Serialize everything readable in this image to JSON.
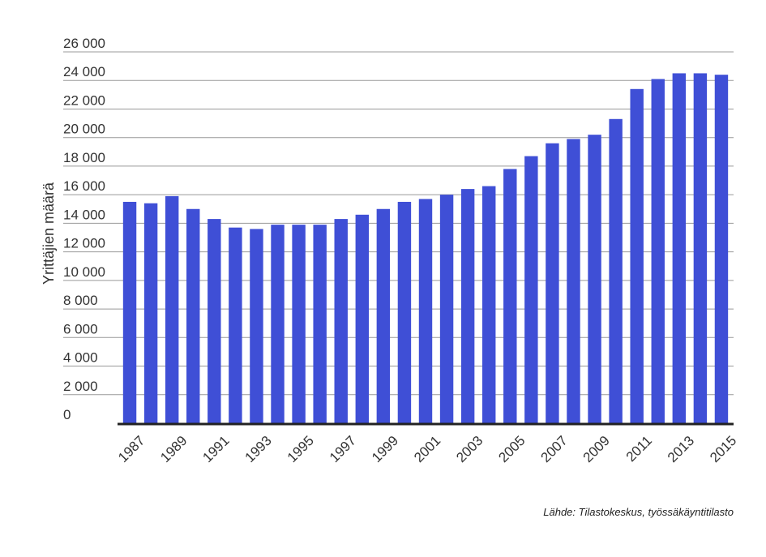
{
  "chart_data": {
    "type": "bar",
    "title": "",
    "xlabel": "",
    "ylabel": "Yrittäjien määrä",
    "ylim": [
      0,
      26000
    ],
    "y_ticks": [
      0,
      2000,
      4000,
      6000,
      8000,
      10000,
      12000,
      14000,
      16000,
      18000,
      20000,
      22000,
      24000,
      26000
    ],
    "y_tick_labels": [
      "0",
      "2 000",
      "4 000",
      "6 000",
      "8 000",
      "10 000",
      "12 000",
      "14 000",
      "16 000",
      "18 000",
      "20 000",
      "22 000",
      "24 000",
      "26 000"
    ],
    "categories": [
      "1987",
      "1988",
      "1989",
      "1990",
      "1991",
      "1992",
      "1993",
      "1994",
      "1995",
      "1996",
      "1997",
      "1998",
      "1999",
      "2000",
      "2001",
      "2002",
      "2003",
      "2004",
      "2005",
      "2006",
      "2007",
      "2008",
      "2009",
      "2010",
      "2011",
      "2012",
      "2013",
      "2014",
      "2015"
    ],
    "x_tick_labels_shown": [
      "1987",
      "1989",
      "1991",
      "1993",
      "1995",
      "1997",
      "1999",
      "2001",
      "2003",
      "2005",
      "2007",
      "2009",
      "2011",
      "2013",
      "2015"
    ],
    "values": [
      15500,
      15400,
      15900,
      15000,
      14300,
      13700,
      13600,
      13900,
      13900,
      13900,
      14300,
      14600,
      15000,
      15500,
      15700,
      16000,
      16400,
      16600,
      17800,
      18700,
      19600,
      19900,
      20200,
      21300,
      23400,
      24100,
      24500,
      24500,
      24400
    ],
    "grid": true,
    "legend": "none",
    "colors": {
      "bar": "#3f4fd6",
      "grid": "#999999",
      "axis": "#222222"
    }
  },
  "source": "Lähde: Tilastokeskus, työssäkäyntitilasto"
}
